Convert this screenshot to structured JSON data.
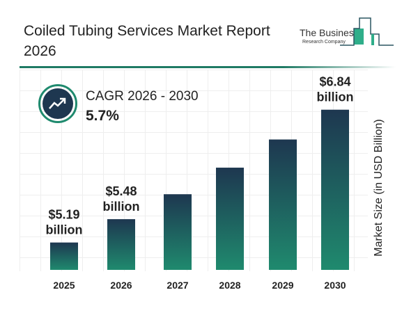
{
  "header": {
    "title": "Coiled Tubing Services Market Report 2026",
    "logo_text": "The Business Research Company"
  },
  "cagr": {
    "label": "CAGR 2026 - 2030",
    "value": "5.7%",
    "icon": "trend-up-icon"
  },
  "colors": {
    "bar_top": "#1e3750",
    "bar_bottom": "#1f8a6e",
    "accent": "#1f7a64"
  },
  "chart_data": {
    "type": "bar",
    "categories": [
      "2025",
      "2026",
      "2027",
      "2028",
      "2029",
      "2030"
    ],
    "values": [
      5.19,
      5.48,
      5.79,
      6.12,
      6.47,
      6.84
    ],
    "data_labels": [
      [
        "$5.19",
        "billion"
      ],
      [
        "$5.48",
        "billion"
      ],
      null,
      null,
      null,
      [
        "$6.84",
        "billion"
      ]
    ],
    "ylabel": "Market Size (in USD Billion)",
    "ylim": [
      4.85,
      6.95
    ],
    "grid": true
  }
}
